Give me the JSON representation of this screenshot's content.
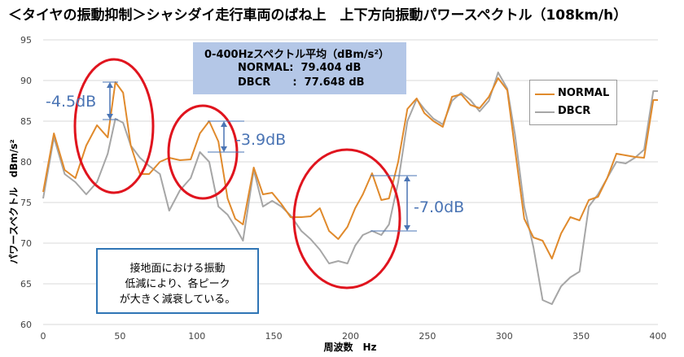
{
  "title": "＜タイヤの振動抑制＞シャシダイ走行車両のばね上　上下方向振動パワースペクトル（108km/h）",
  "average_box": {
    "heading": "0-400Hzスペクトル平均（dBm/s²）",
    "normal_line": "NORMAL:  79.404 dB",
    "dbcr_line": "DBCR      :  77.648 dB"
  },
  "note_box": {
    "line1": "接地面における振動",
    "line2": "低減により、各ピーク",
    "line3": "が大きく減衰している。"
  },
  "annotations": {
    "peak1": "-4.5dB",
    "peak2": "-3.9dB",
    "peak3": "-7.0dB"
  },
  "colors": {
    "normal": "#e08a2c",
    "dbcr": "#a6a6a6",
    "highlight": "#e0141e",
    "annotation": "#4a74b4"
  },
  "chart_data": {
    "type": "line",
    "title": "＜タイヤの振動抑制＞シャシダイ走行車両のばね上　上下方向振動パワースペクトル（108km/h）",
    "xlabel": "周波数　Hz",
    "ylabel": "パワースペクトル　dBm/s²",
    "xlim": [
      0,
      400
    ],
    "ylim": [
      60,
      95
    ],
    "x_ticks": [
      "0",
      "50",
      "100",
      "150",
      "200",
      "250",
      "300",
      "350",
      "400"
    ],
    "y_ticks": [
      "60",
      "65",
      "70",
      "75",
      "80",
      "85",
      "90",
      "95"
    ],
    "grid": "horizontal",
    "legend": "right",
    "series": [
      {
        "name": "NORMAL",
        "x": [
          0,
          7,
          14,
          21,
          28,
          35,
          42,
          47,
          52,
          57,
          63,
          69,
          76,
          82,
          89,
          96,
          102,
          108,
          114,
          120,
          125,
          130,
          137,
          143,
          149,
          155,
          161,
          168,
          174,
          180,
          186,
          192,
          198,
          203,
          208,
          214,
          220,
          225,
          231,
          237,
          243,
          248,
          254,
          260,
          266,
          272,
          278,
          284,
          290,
          296,
          302,
          307,
          313,
          319,
          325,
          331,
          337,
          343,
          349,
          355,
          361,
          367,
          373,
          379,
          385,
          391,
          397,
          400
        ],
        "y": [
          76.3,
          83.5,
          79,
          78,
          82,
          84.5,
          83,
          89.8,
          88.5,
          82,
          78.5,
          78.5,
          80,
          80.5,
          80.2,
          80.3,
          83.5,
          85,
          82.5,
          75.5,
          73,
          72.3,
          79.3,
          76,
          76.2,
          74.8,
          73.2,
          73.2,
          73.3,
          74.3,
          71.5,
          70.5,
          72,
          74.3,
          76,
          78.6,
          75.3,
          75.5,
          80,
          86.5,
          87.8,
          86,
          85,
          84.3,
          88,
          88.3,
          87,
          86.6,
          88,
          90.3,
          88.8,
          81.5,
          73,
          70.7,
          70.3,
          68.1,
          71.2,
          73.2,
          72.8,
          75.3,
          75.7,
          78,
          81,
          80.8,
          80.6,
          80.5,
          87.6,
          87.6
        ]
      },
      {
        "name": "DBCR",
        "x": [
          0,
          7,
          14,
          21,
          28,
          35,
          42,
          47,
          52,
          57,
          63,
          69,
          76,
          82,
          89,
          96,
          102,
          108,
          114,
          120,
          125,
          130,
          137,
          143,
          149,
          155,
          161,
          168,
          174,
          180,
          186,
          192,
          198,
          203,
          208,
          214,
          220,
          225,
          231,
          237,
          243,
          248,
          254,
          260,
          266,
          272,
          278,
          284,
          290,
          296,
          302,
          307,
          313,
          319,
          325,
          331,
          337,
          343,
          349,
          355,
          361,
          367,
          373,
          379,
          385,
          391,
          397,
          400
        ],
        "y": [
          75.5,
          83,
          78.5,
          77.5,
          76,
          77.5,
          81,
          85.3,
          84.8,
          82,
          80.5,
          79.5,
          78.5,
          74,
          76.5,
          78,
          81.2,
          80,
          74.5,
          73.5,
          72,
          70.3,
          79,
          74.5,
          75.2,
          74.5,
          73.4,
          71.5,
          70.5,
          69.2,
          67.5,
          67.8,
          67.5,
          69.7,
          71,
          71.5,
          71,
          72.3,
          77.5,
          85,
          87.7,
          86.5,
          85.3,
          84.6,
          87.5,
          88.5,
          87.6,
          86.2,
          87.5,
          91,
          89,
          83.3,
          74.5,
          69.5,
          63,
          62.5,
          64.7,
          65.8,
          66.5,
          74.5,
          76,
          78,
          80,
          79.8,
          80.5,
          81.5,
          88.7,
          88.7
        ]
      }
    ]
  }
}
